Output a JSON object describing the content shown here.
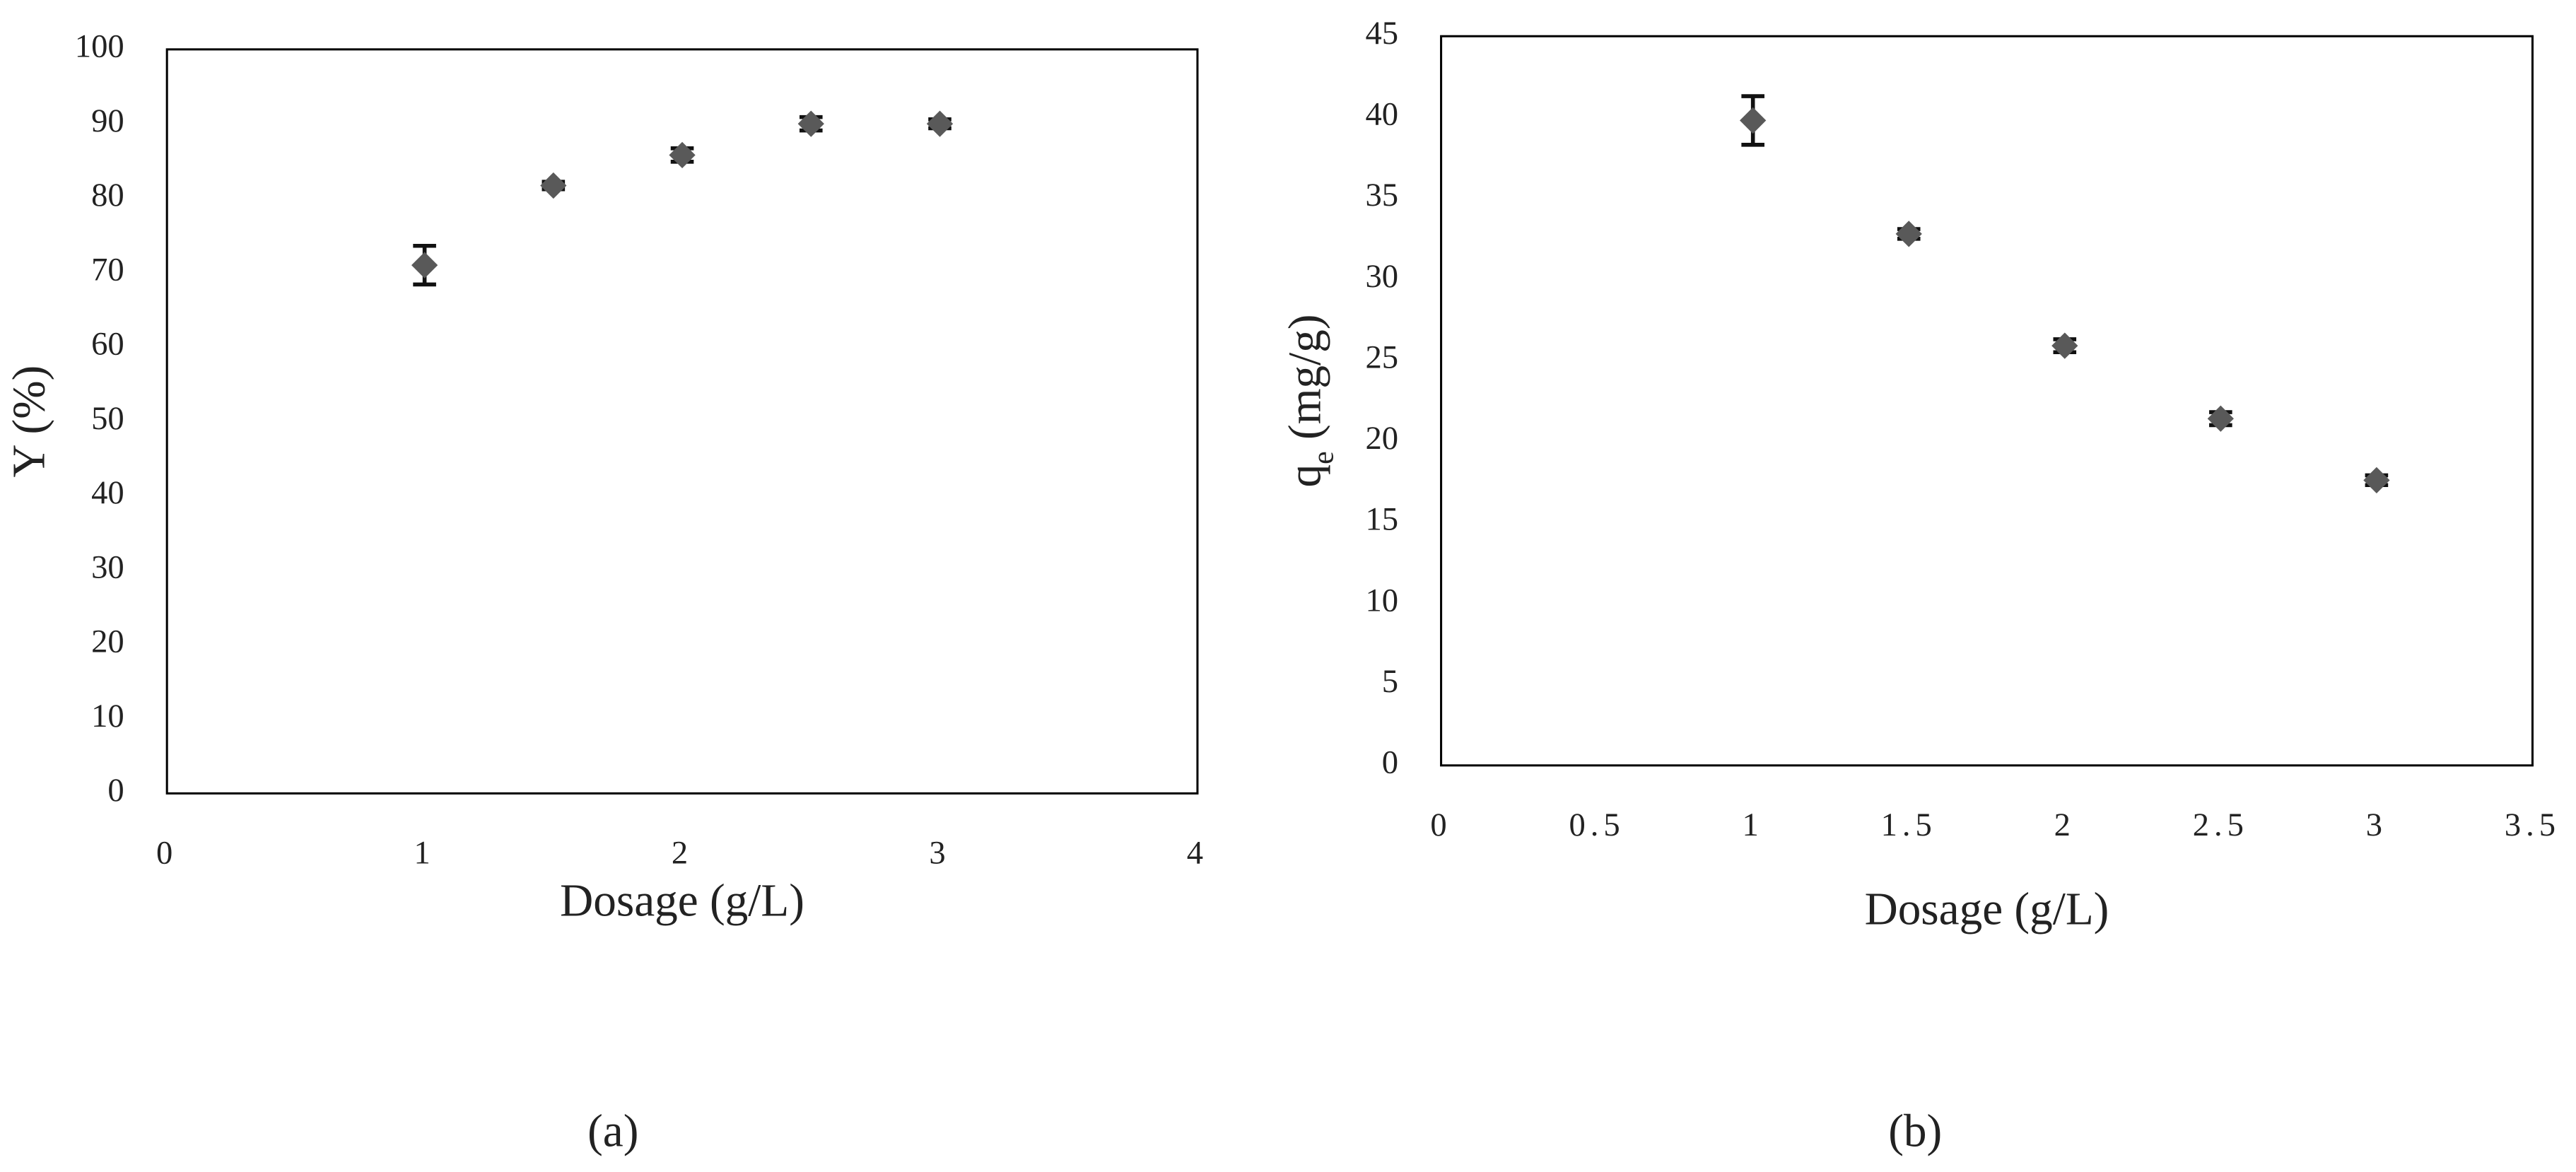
{
  "chart_data": [
    {
      "type": "scatter",
      "x_label": "Dosage (g/L)",
      "y_label": [
        "Y (%)"
      ],
      "caption": "(a)",
      "x": [
        1,
        1.5,
        2,
        2.5,
        3
      ],
      "values": [
        71,
        81.7,
        85.8,
        90,
        90
      ],
      "errors": [
        2.6,
        0.5,
        0.9,
        0.9,
        0.6
      ],
      "color": "#595959",
      "error_color": "#111111",
      "xlim": [
        0,
        4
      ],
      "xticks": [
        0,
        1,
        2,
        3,
        4
      ],
      "ylim": [
        0,
        100
      ],
      "yticks": [
        0,
        10,
        20,
        30,
        40,
        50,
        60,
        70,
        80,
        90,
        100
      ]
    },
    {
      "type": "scatter",
      "x_label": "Dosage (g/L)",
      "y_label": [
        "q",
        "e",
        " (mg/g)"
      ],
      "caption": "(b)",
      "x": [
        1,
        1.5,
        2,
        2.5,
        3
      ],
      "values": [
        39.8,
        32.8,
        25.9,
        21.4,
        17.6
      ],
      "errors": [
        1.5,
        0.3,
        0.4,
        0.4,
        0.3
      ],
      "color": "#595959",
      "error_color": "#111111",
      "xlim": [
        0,
        3.5
      ],
      "xticks": [
        0,
        0.5,
        1,
        1.5,
        2,
        2.5,
        3,
        3.5
      ],
      "ylim": [
        0,
        45
      ],
      "yticks": [
        0,
        5,
        10,
        15,
        20,
        25,
        30,
        35,
        40,
        45
      ]
    }
  ]
}
